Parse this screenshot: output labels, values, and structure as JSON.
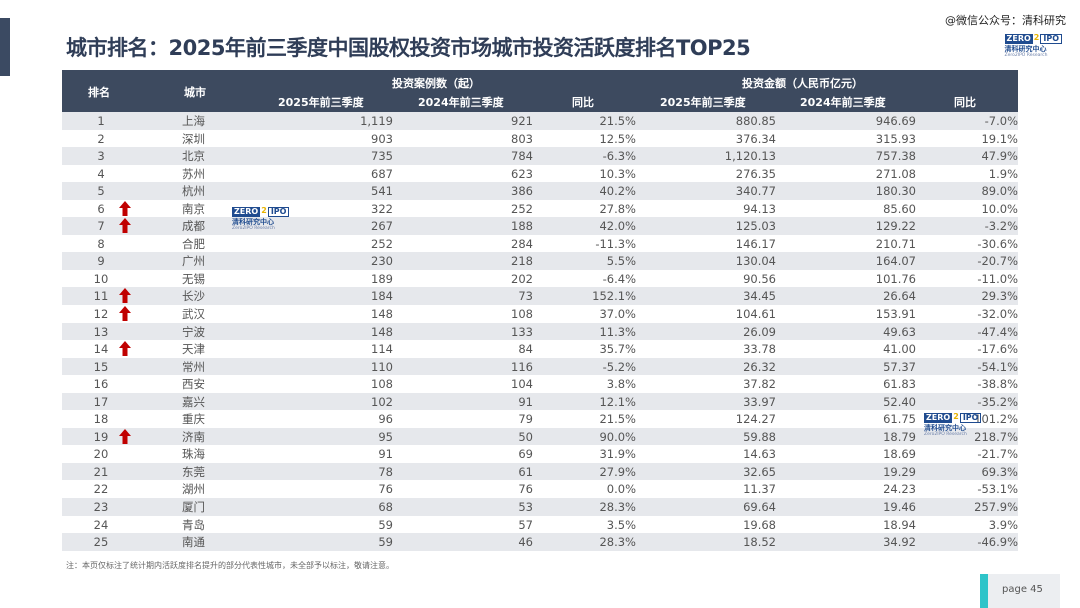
{
  "title": "城市排名：2025年前三季度中国股权投资市场城市投资活跃度排名TOP25",
  "watermark": "@微信公众号：清科研究",
  "logo": {
    "zero": "ZERO",
    "two": "2",
    "ipo": "IPO",
    "cn": "清科研究中心",
    "en": "Zero2IPO Research"
  },
  "colors": {
    "header_bg": "#3d4a5f",
    "arrow": "#c00000",
    "accent": "#3b4a62",
    "teal": "#2ec4c9"
  },
  "header": {
    "rank": "排名",
    "city": "城市",
    "cases_group": "投资案例数（起）",
    "amount_group": "投资金额（人民币亿元）",
    "y2025": "2025年前三季度",
    "y2024": "2024年前三季度",
    "yoy": "同比"
  },
  "rows": [
    {
      "rank": "1",
      "up": false,
      "city": "上海",
      "n25": "1,119",
      "n24": "921",
      "ny": "21.5%",
      "a25": "880.85",
      "a24": "946.69",
      "ay": "-7.0%"
    },
    {
      "rank": "2",
      "up": false,
      "city": "深圳",
      "n25": "903",
      "n24": "803",
      "ny": "12.5%",
      "a25": "376.34",
      "a24": "315.93",
      "ay": "19.1%"
    },
    {
      "rank": "3",
      "up": false,
      "city": "北京",
      "n25": "735",
      "n24": "784",
      "ny": "-6.3%",
      "a25": "1,120.13",
      "a24": "757.38",
      "ay": "47.9%"
    },
    {
      "rank": "4",
      "up": false,
      "city": "苏州",
      "n25": "687",
      "n24": "623",
      "ny": "10.3%",
      "a25": "276.35",
      "a24": "271.08",
      "ay": "1.9%"
    },
    {
      "rank": "5",
      "up": false,
      "city": "杭州",
      "n25": "541",
      "n24": "386",
      "ny": "40.2%",
      "a25": "340.77",
      "a24": "180.30",
      "ay": "89.0%"
    },
    {
      "rank": "6",
      "up": true,
      "city": "南京",
      "n25": "322",
      "n24": "252",
      "ny": "27.8%",
      "a25": "94.13",
      "a24": "85.60",
      "ay": "10.0%"
    },
    {
      "rank": "7",
      "up": true,
      "city": "成都",
      "n25": "267",
      "n24": "188",
      "ny": "42.0%",
      "a25": "125.03",
      "a24": "129.22",
      "ay": "-3.2%"
    },
    {
      "rank": "8",
      "up": false,
      "city": "合肥",
      "n25": "252",
      "n24": "284",
      "ny": "-11.3%",
      "a25": "146.17",
      "a24": "210.71",
      "ay": "-30.6%"
    },
    {
      "rank": "9",
      "up": false,
      "city": "广州",
      "n25": "230",
      "n24": "218",
      "ny": "5.5%",
      "a25": "130.04",
      "a24": "164.07",
      "ay": "-20.7%"
    },
    {
      "rank": "10",
      "up": false,
      "city": "无锡",
      "n25": "189",
      "n24": "202",
      "ny": "-6.4%",
      "a25": "90.56",
      "a24": "101.76",
      "ay": "-11.0%"
    },
    {
      "rank": "11",
      "up": true,
      "city": "长沙",
      "n25": "184",
      "n24": "73",
      "ny": "152.1%",
      "a25": "34.45",
      "a24": "26.64",
      "ay": "29.3%"
    },
    {
      "rank": "12",
      "up": true,
      "city": "武汉",
      "n25": "148",
      "n24": "108",
      "ny": "37.0%",
      "a25": "104.61",
      "a24": "153.91",
      "ay": "-32.0%"
    },
    {
      "rank": "13",
      "up": false,
      "city": "宁波",
      "n25": "148",
      "n24": "133",
      "ny": "11.3%",
      "a25": "26.09",
      "a24": "49.63",
      "ay": "-47.4%"
    },
    {
      "rank": "14",
      "up": true,
      "city": "天津",
      "n25": "114",
      "n24": "84",
      "ny": "35.7%",
      "a25": "33.78",
      "a24": "41.00",
      "ay": "-17.6%"
    },
    {
      "rank": "15",
      "up": false,
      "city": "常州",
      "n25": "110",
      "n24": "116",
      "ny": "-5.2%",
      "a25": "26.32",
      "a24": "57.37",
      "ay": "-54.1%"
    },
    {
      "rank": "16",
      "up": false,
      "city": "西安",
      "n25": "108",
      "n24": "104",
      "ny": "3.8%",
      "a25": "37.82",
      "a24": "61.83",
      "ay": "-38.8%"
    },
    {
      "rank": "17",
      "up": false,
      "city": "嘉兴",
      "n25": "102",
      "n24": "91",
      "ny": "12.1%",
      "a25": "33.97",
      "a24": "52.40",
      "ay": "-35.2%"
    },
    {
      "rank": "18",
      "up": false,
      "city": "重庆",
      "n25": "96",
      "n24": "79",
      "ny": "21.5%",
      "a25": "124.27",
      "a24": "61.75",
      "ay": "101.2%"
    },
    {
      "rank": "19",
      "up": true,
      "city": "济南",
      "n25": "95",
      "n24": "50",
      "ny": "90.0%",
      "a25": "59.88",
      "a24": "18.79",
      "ay": "218.7%"
    },
    {
      "rank": "20",
      "up": false,
      "city": "珠海",
      "n25": "91",
      "n24": "69",
      "ny": "31.9%",
      "a25": "14.63",
      "a24": "18.69",
      "ay": "-21.7%"
    },
    {
      "rank": "21",
      "up": false,
      "city": "东莞",
      "n25": "78",
      "n24": "61",
      "ny": "27.9%",
      "a25": "32.65",
      "a24": "19.29",
      "ay": "69.3%"
    },
    {
      "rank": "22",
      "up": false,
      "city": "湖州",
      "n25": "76",
      "n24": "76",
      "ny": "0.0%",
      "a25": "11.37",
      "a24": "24.23",
      "ay": "-53.1%"
    },
    {
      "rank": "23",
      "up": false,
      "city": "厦门",
      "n25": "68",
      "n24": "53",
      "ny": "28.3%",
      "a25": "69.64",
      "a24": "19.46",
      "ay": "257.9%"
    },
    {
      "rank": "24",
      "up": false,
      "city": "青岛",
      "n25": "59",
      "n24": "57",
      "ny": "3.5%",
      "a25": "19.68",
      "a24": "18.94",
      "ay": "3.9%"
    },
    {
      "rank": "25",
      "up": false,
      "city": "南通",
      "n25": "59",
      "n24": "46",
      "ny": "28.3%",
      "a25": "18.52",
      "a24": "34.92",
      "ay": "-46.9%"
    }
  ],
  "note": "注：本页仅标注了统计期内活跃度排名提升的部分代表性城市，未全部予以标注，敬请注意。",
  "page": "page  45"
}
